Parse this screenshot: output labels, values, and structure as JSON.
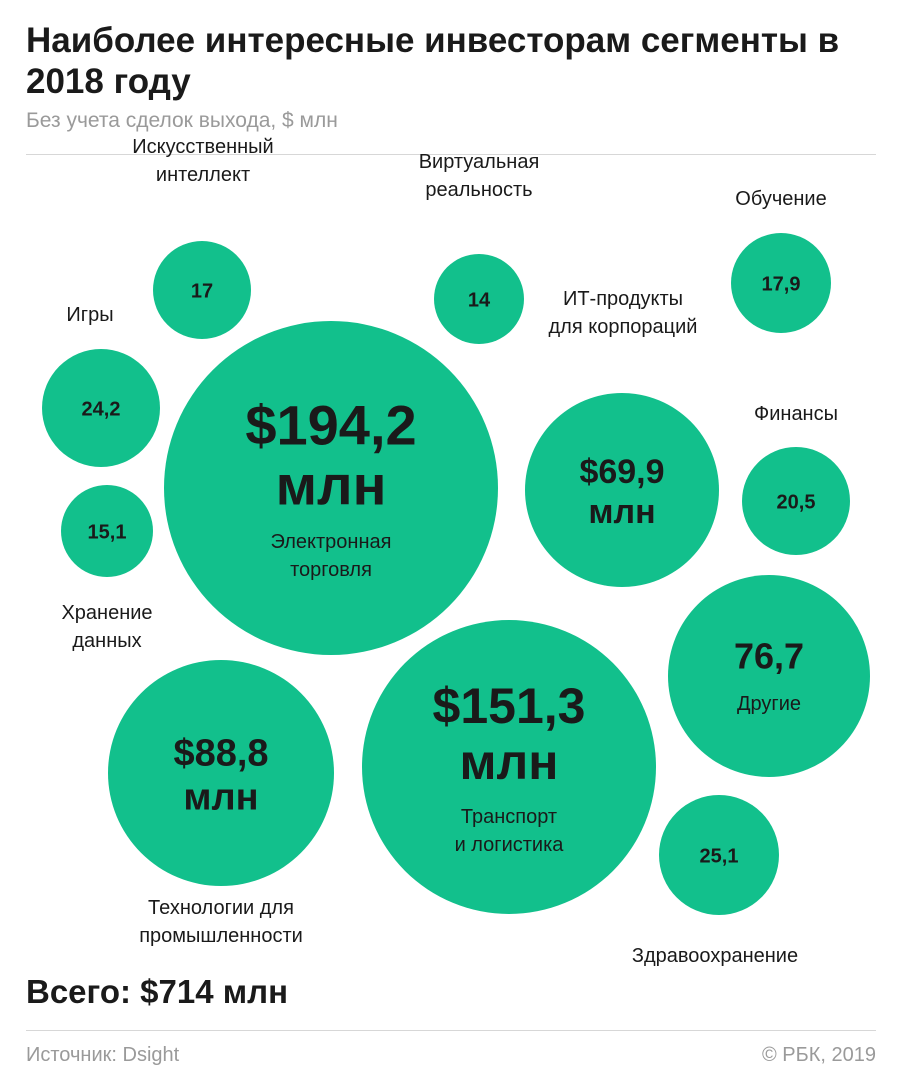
{
  "header": {
    "title": "Наиболее интересные инвесторам сегменты в 2018 году",
    "subtitle": "Без учета сделок выхода, $ млн"
  },
  "footer": {
    "total": "Всего: $714 млн",
    "source": "Источник: Dsight",
    "copyright": "© РБК, 2019"
  },
  "colors": {
    "bubble_fill": "#12c08c",
    "text_dark": "#1a1a1a",
    "text_muted": "#9a9a9a",
    "rule": "#d7d7d7"
  },
  "chart_data": {
    "type": "bubble",
    "unit": "$ млн",
    "total": 714,
    "segments": [
      {
        "id": "ecommerce",
        "name": "Электронная торговля",
        "value": 194.2,
        "label_lines": [
          "$194,2",
          "млн"
        ],
        "name_lines": [
          "Электронная",
          "торговля"
        ]
      },
      {
        "id": "transport",
        "name": "Транспорт и логистика",
        "value": 151.3,
        "label_lines": [
          "$151,3",
          "млн"
        ],
        "name_lines": [
          "Транспорт",
          "и логистика"
        ]
      },
      {
        "id": "industry",
        "name": "Технологии для промышленности",
        "value": 88.8,
        "label_lines": [
          "$88,8",
          "млн"
        ],
        "name_lines": [
          "Технологии для",
          "промышленности"
        ]
      },
      {
        "id": "others",
        "name": "Другие",
        "value": 76.7,
        "label_lines": [
          "76,7"
        ],
        "name_lines": [
          "Другие"
        ]
      },
      {
        "id": "it-corp",
        "name": "ИТ-продукты для корпораций",
        "value": 69.9,
        "label_lines": [
          "$69,9",
          "млн"
        ],
        "name_lines": [
          "ИТ-продукты",
          "для корпораций"
        ]
      },
      {
        "id": "healthcare",
        "name": "Здравоохранение",
        "value": 25.1,
        "label_lines": [
          "25,1"
        ],
        "name_lines": [
          "Здравоохранение"
        ]
      },
      {
        "id": "games",
        "name": "Игры",
        "value": 24.2,
        "label_lines": [
          "24,2"
        ],
        "name_lines": [
          "Игры"
        ]
      },
      {
        "id": "finance",
        "name": "Финансы",
        "value": 20.5,
        "label_lines": [
          "20,5"
        ],
        "name_lines": [
          "Финансы"
        ]
      },
      {
        "id": "education",
        "name": "Обучение",
        "value": 17.9,
        "label_lines": [
          "17,9"
        ],
        "name_lines": [
          "Обучение"
        ]
      },
      {
        "id": "ai",
        "name": "Искусственный интеллект",
        "value": 17,
        "label_lines": [
          "17"
        ],
        "name_lines": [
          "Искусственный",
          "интеллект"
        ]
      },
      {
        "id": "storage",
        "name": "Хранение данных",
        "value": 15.1,
        "label_lines": [
          "15,1"
        ],
        "name_lines": [
          "Хранение",
          "данных"
        ]
      },
      {
        "id": "vr",
        "name": "Виртуальная реальность",
        "value": 14,
        "label_lines": [
          "14"
        ],
        "name_lines": [
          "Виртуальная",
          "реальность"
        ]
      }
    ]
  }
}
